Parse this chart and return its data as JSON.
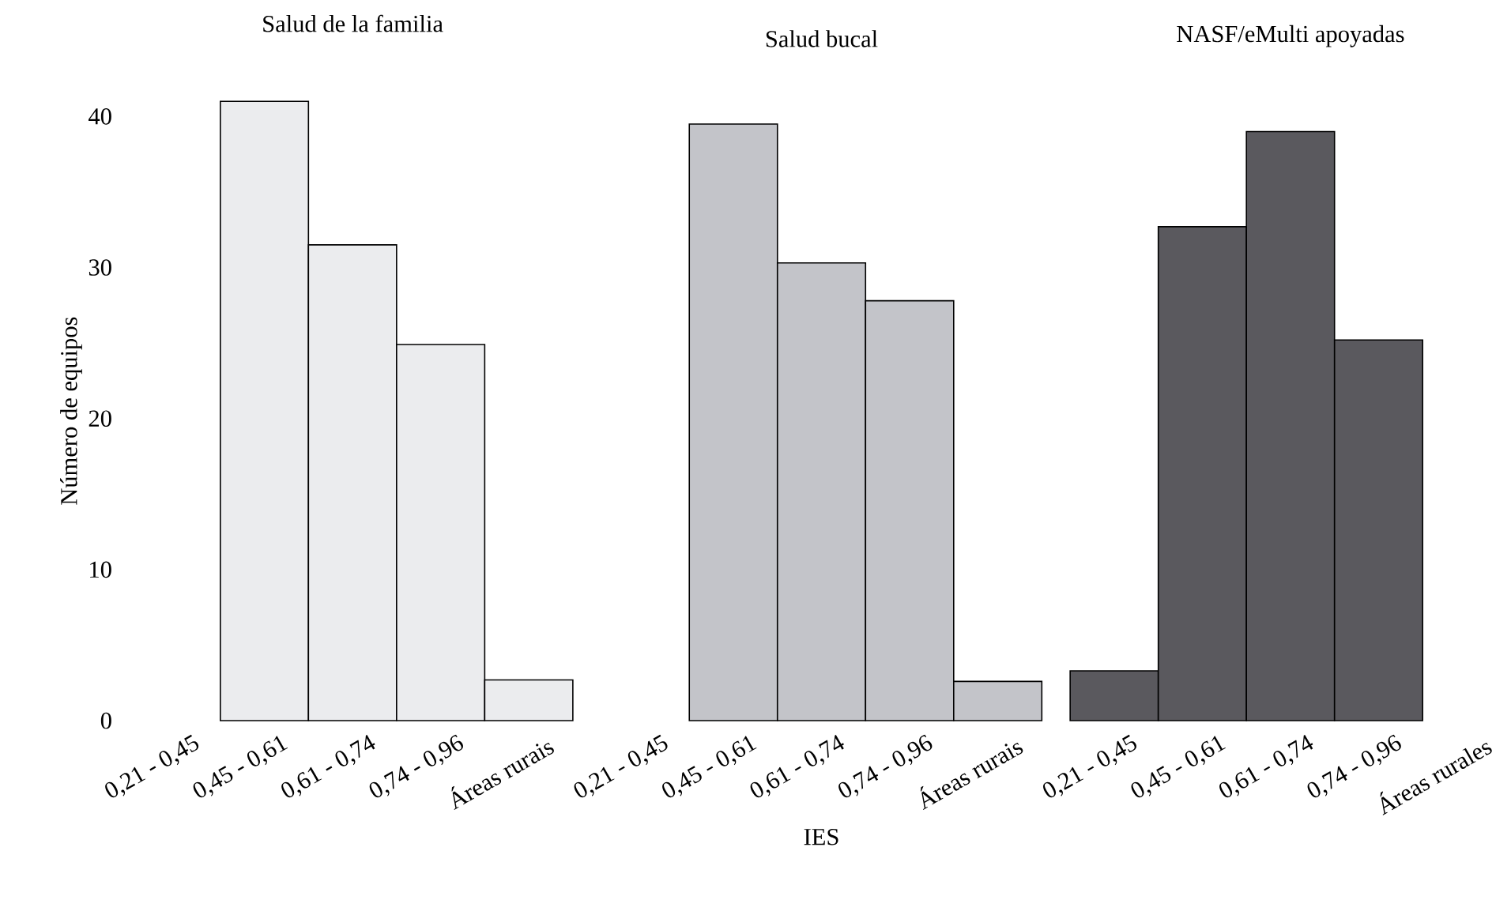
{
  "chart_data": [
    {
      "type": "bar",
      "title": "Salud de la familia",
      "ylabel": "Número de equipos",
      "categories": [
        "0,21 - 0,45",
        "0,45 - 0,61",
        "0,61 - 0,74",
        "0,74 - 0,96",
        "Áreas rurais"
      ],
      "values": [
        null,
        41.0,
        31.5,
        24.9,
        2.7
      ],
      "color": "#ebecee",
      "ylim": [
        0,
        41
      ],
      "yticks": [
        0,
        10,
        20,
        30,
        40
      ]
    },
    {
      "type": "bar",
      "title": "Salud bucal",
      "xlabel": "IES",
      "categories": [
        "0,21 - 0,45",
        "0,45 - 0,61",
        "0,61 - 0,74",
        "0,74 - 0,96",
        "Áreas rurais"
      ],
      "values": [
        null,
        39.5,
        30.3,
        27.8,
        2.6
      ],
      "color": "#c3c4c9",
      "ylim": [
        0,
        40
      ],
      "yticks": [
        0,
        10,
        20,
        30,
        40
      ],
      "tick_labels": "x"
    },
    {
      "type": "bar",
      "title": "NASF/eMulti apoyadas",
      "categories": [
        "0,21 - 0,45",
        "0,45 - 0,61",
        "0,61 - 0,74",
        "0,74 - 0,96",
        "Áreas rurales"
      ],
      "values": [
        3.3,
        32.7,
        39.0,
        25.2,
        null
      ],
      "color": "#5a595e",
      "ylim": [
        0,
        40
      ],
      "yticks": [
        0,
        10,
        20,
        30,
        40
      ],
      "tick_labels": "x"
    }
  ]
}
